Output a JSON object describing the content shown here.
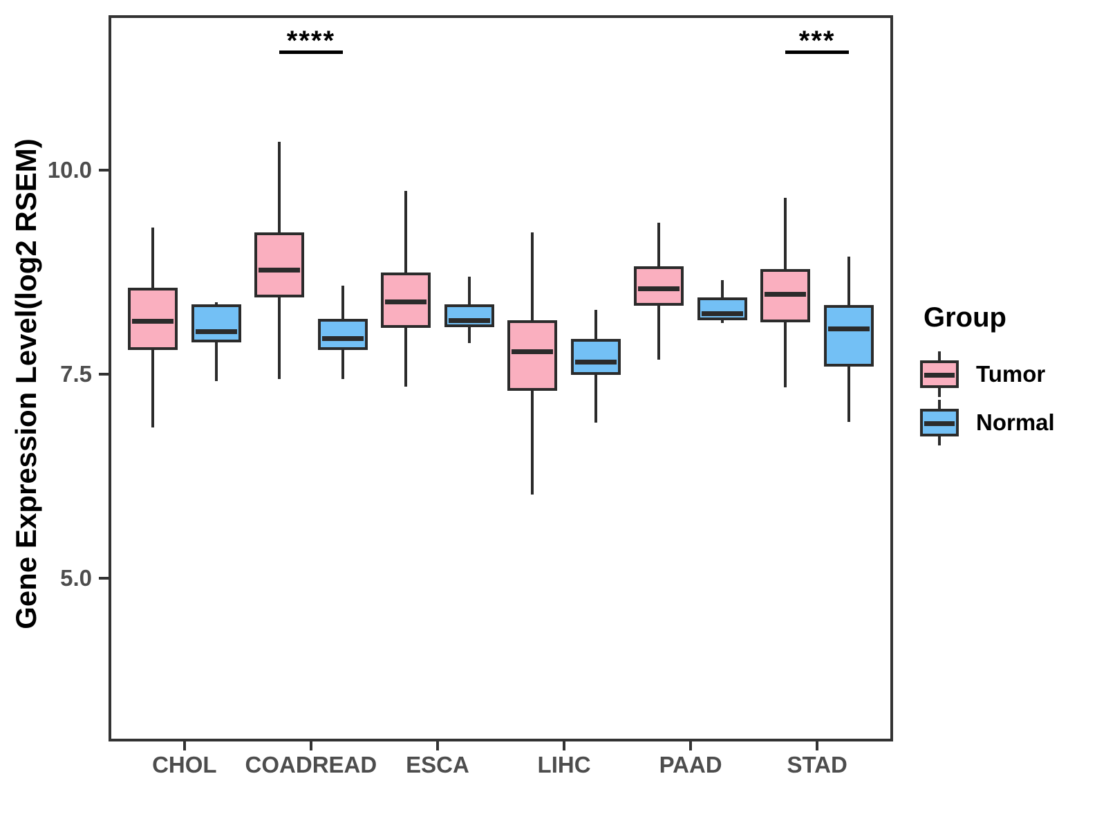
{
  "chart_data": {
    "type": "boxplot",
    "title": "",
    "xlabel": "",
    "ylabel": "Gene Expression Level(log2 RSEM)",
    "categories": [
      "CHOL",
      "COADREAD",
      "ESCA",
      "LIHC",
      "PAAD",
      "STAD"
    ],
    "y_ticks": [
      {
        "value": 5.0,
        "label": "5.0"
      },
      {
        "value": 7.5,
        "label": "7.5"
      },
      {
        "value": 10.0,
        "label": "10.0"
      }
    ],
    "ylim": [
      3.0,
      11.9
    ],
    "grid": false,
    "series": [
      {
        "name": "Tumor",
        "fill": "#FAAFBF",
        "boxes": [
          {
            "category": "CHOL",
            "whisker_low": 6.85,
            "q1": 7.8,
            "median": 8.18,
            "q3": 8.56,
            "whisker_high": 9.3
          },
          {
            "category": "COADREAD",
            "whisker_low": 7.44,
            "q1": 8.44,
            "median": 8.81,
            "q3": 9.24,
            "whisker_high": 10.35
          },
          {
            "category": "ESCA",
            "whisker_low": 7.35,
            "q1": 8.07,
            "median": 8.42,
            "q3": 8.75,
            "whisker_high": 9.75
          },
          {
            "category": "LIHC",
            "whisker_low": 6.03,
            "q1": 7.3,
            "median": 7.81,
            "q3": 8.16,
            "whisker_high": 9.24
          },
          {
            "category": "PAAD",
            "whisker_low": 7.68,
            "q1": 8.34,
            "median": 8.58,
            "q3": 8.82,
            "whisker_high": 9.36
          },
          {
            "category": "STAD",
            "whisker_low": 7.34,
            "q1": 8.14,
            "median": 8.51,
            "q3": 8.79,
            "whisker_high": 9.66
          }
        ]
      },
      {
        "name": "Normal",
        "fill": "#73C0F5",
        "boxes": [
          {
            "category": "CHOL",
            "whisker_low": 7.42,
            "q1": 7.89,
            "median": 8.06,
            "q3": 8.36,
            "whisker_high": 8.38
          },
          {
            "category": "COADREAD",
            "whisker_low": 7.44,
            "q1": 7.8,
            "median": 7.97,
            "q3": 8.18,
            "whisker_high": 8.59
          },
          {
            "category": "ESCA",
            "whisker_low": 7.88,
            "q1": 8.08,
            "median": 8.19,
            "q3": 8.36,
            "whisker_high": 8.7
          },
          {
            "category": "LIHC",
            "whisker_low": 6.91,
            "q1": 7.49,
            "median": 7.68,
            "q3": 7.93,
            "whisker_high": 8.29
          },
          {
            "category": "PAAD",
            "whisker_low": 8.13,
            "q1": 8.16,
            "median": 8.28,
            "q3": 8.44,
            "whisker_high": 8.65
          },
          {
            "category": "STAD",
            "whisker_low": 6.92,
            "q1": 7.59,
            "median": 8.09,
            "q3": 8.35,
            "whisker_high": 8.94
          }
        ]
      }
    ],
    "annotations": [
      {
        "category": "COADREAD",
        "label": "****"
      },
      {
        "category": "STAD",
        "label": "***"
      }
    ],
    "legend": {
      "title": "Group",
      "position": "right",
      "entries": [
        "Tumor",
        "Normal"
      ]
    },
    "colors": {
      "box_border": "#2B2B2B",
      "panel_border": "#333333",
      "tick_text": "#4D4D4D",
      "axis_title_text": "#000000",
      "annotation_text": "#000000",
      "background": "#FFFFFF"
    }
  }
}
